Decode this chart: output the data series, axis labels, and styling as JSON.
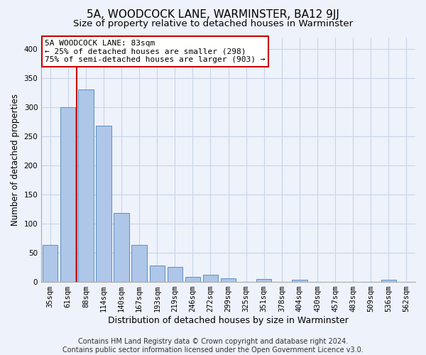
{
  "title": "5A, WOODCOCK LANE, WARMINSTER, BA12 9JJ",
  "subtitle": "Size of property relative to detached houses in Warminster",
  "xlabel": "Distribution of detached houses by size in Warminster",
  "ylabel": "Number of detached properties",
  "categories": [
    "35sqm",
    "61sqm",
    "88sqm",
    "114sqm",
    "140sqm",
    "167sqm",
    "193sqm",
    "219sqm",
    "246sqm",
    "272sqm",
    "299sqm",
    "325sqm",
    "351sqm",
    "378sqm",
    "404sqm",
    "430sqm",
    "457sqm",
    "483sqm",
    "509sqm",
    "536sqm",
    "562sqm"
  ],
  "values": [
    63,
    300,
    330,
    268,
    118,
    63,
    27,
    25,
    8,
    12,
    5,
    0,
    4,
    0,
    3,
    0,
    0,
    0,
    0,
    3,
    0
  ],
  "bar_color": "#aec6e8",
  "bar_edge_color": "#5a8fc2",
  "vline_color": "#cc0000",
  "vline_index": 2,
  "annotation_text": "5A WOODCOCK LANE: 83sqm\n← 25% of detached houses are smaller (298)\n75% of semi-detached houses are larger (903) →",
  "annotation_box_color": "#ffffff",
  "annotation_box_edge": "#cc0000",
  "ylim": [
    0,
    420
  ],
  "yticks": [
    0,
    50,
    100,
    150,
    200,
    250,
    300,
    350,
    400
  ],
  "grid_color": "#c8d4e8",
  "background_color": "#eef2fa",
  "footer": "Contains HM Land Registry data © Crown copyright and database right 2024.\nContains public sector information licensed under the Open Government Licence v3.0.",
  "title_fontsize": 11,
  "subtitle_fontsize": 9.5,
  "xlabel_fontsize": 9,
  "ylabel_fontsize": 8.5,
  "tick_fontsize": 7.5,
  "annotation_fontsize": 8,
  "footer_fontsize": 7
}
